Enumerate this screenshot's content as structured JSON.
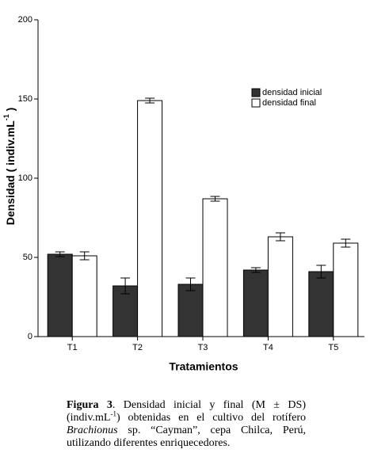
{
  "chart_data": {
    "type": "bar",
    "y_label": [
      "Densidad ( indiv.mL",
      "-1",
      " )"
    ],
    "x_label": "Tratamientos",
    "categories": [
      "T1",
      "T2",
      "T3",
      "T4",
      "T5"
    ],
    "series": [
      {
        "name": "densidad inicial",
        "color": "#333333",
        "values": [
          52,
          32,
          33,
          42,
          41
        ],
        "errors": [
          1.5,
          5,
          4,
          1.5,
          4
        ]
      },
      {
        "name": "densidad final",
        "color": "#ffffff",
        "values": [
          51,
          149,
          87,
          63,
          59
        ],
        "errors": [
          2.5,
          1.5,
          1.5,
          2.5,
          2.5
        ]
      }
    ],
    "ylim": [
      0,
      200
    ],
    "yticks": [
      0,
      50,
      100,
      150,
      200
    ],
    "legend": "upper-right"
  },
  "caption": [
    "Figura 3",
    ". Densidad inicial y final (M ± DS) (indiv.mL",
    "-1",
    ") obtenidas en el cultivo del rotífero ",
    "Brachionus",
    " sp. “Cayman”, cepa Chilca, Perú, utilizando diferentes enriquecedores."
  ]
}
